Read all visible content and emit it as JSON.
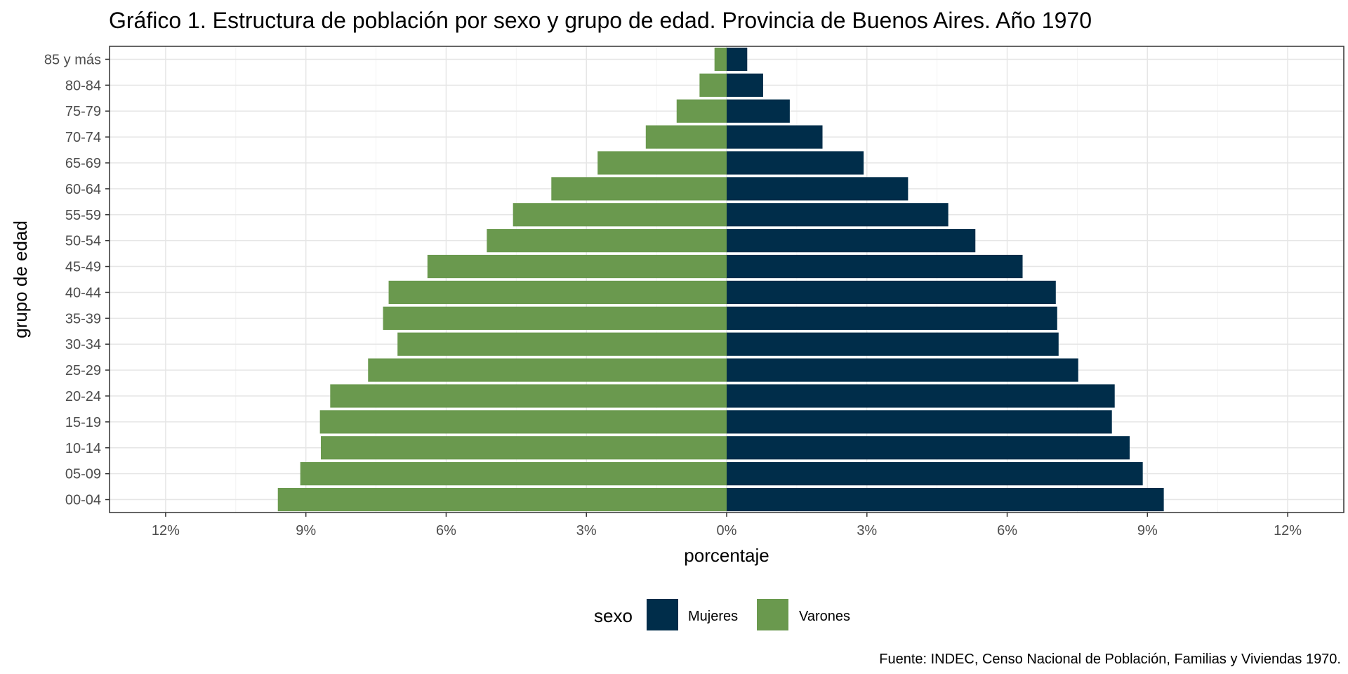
{
  "chart_data": {
    "type": "bar",
    "orientation": "horizontal",
    "title": "Gráfico 1. Estructura de población por sexo y grupo de edad. Provincia de Buenos Aires. Año 1970",
    "xlabel": "porcentaje",
    "ylabel": "grupo de edad",
    "caption": "Fuente: INDEC, Censo Nacional de Población, Familias y Viviendas 1970.",
    "xlim": [
      -13.2,
      13.2
    ],
    "xticks": [
      -12,
      -9,
      -6,
      -3,
      0,
      3,
      6,
      9,
      12
    ],
    "xtick_labels": [
      "12%",
      "9%",
      "6%",
      "3%",
      "0%",
      "3%",
      "6%",
      "9%",
      "12%"
    ],
    "grid": true,
    "legend_position": "bottom",
    "legend_title": "sexo",
    "categories": [
      "00-04",
      "05-09",
      "10-14",
      "15-19",
      "20-24",
      "25-29",
      "30-34",
      "35-39",
      "40-44",
      "45-49",
      "50-54",
      "55-59",
      "60-64",
      "65-69",
      "70-74",
      "75-79",
      "80-84",
      "85 y más"
    ],
    "series": [
      {
        "name": "Mujeres",
        "color": "#002d4a",
        "values": [
          9.35,
          8.9,
          8.62,
          8.24,
          8.3,
          7.52,
          7.1,
          7.07,
          7.04,
          6.33,
          5.32,
          4.74,
          3.88,
          2.93,
          2.05,
          1.35,
          0.78,
          0.44
        ]
      },
      {
        "name": "Varones",
        "color": "#6a994e",
        "values": [
          9.6,
          9.12,
          8.68,
          8.7,
          8.48,
          7.67,
          7.04,
          7.35,
          7.23,
          6.4,
          5.13,
          4.57,
          3.75,
          2.76,
          1.73,
          1.07,
          0.58,
          0.26
        ]
      }
    ]
  }
}
